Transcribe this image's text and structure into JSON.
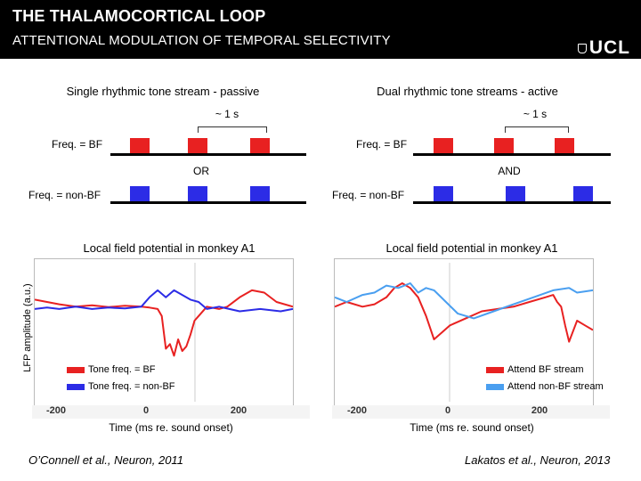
{
  "header": {
    "title": "THE THALAMOCORTICAL LOOP",
    "subtitle": "ATTENTIONAL MODULATION OF TEMPORAL SELECTIVITY",
    "logo": "UCL"
  },
  "left_panel": {
    "heading": "Single rhythmic tone stream - passive",
    "interval": "~ 1 s",
    "row1_label": "Freq. = BF",
    "connector": "OR",
    "row2_label": "Freq. = non-BF",
    "plot_title": "Local field potential in monkey A1",
    "legend": [
      "Tone freq. = BF",
      "Tone freq. = non-BF"
    ],
    "xlabel": "Time (ms re. sound onset)",
    "citation": "O’Connell et al., Neuron, 2011"
  },
  "right_panel": {
    "heading": "Dual rhythmic tone streams - active",
    "interval": "~ 1 s",
    "row1_label": "Freq. = BF",
    "connector": "AND",
    "row2_label": "Freq. = non-BF",
    "plot_title": "Local field potential in monkey A1",
    "legend": [
      "Attend BF stream",
      "Attend non-BF stream"
    ],
    "xlabel": "Time (ms re. sound onset)",
    "citation": "Lakatos et al., Neuron, 2013"
  },
  "ylabel": "LFP amplitude (a.u.)",
  "colors": {
    "bf_red": "#e82121",
    "nonbf_blue": "#2c2ce6",
    "attend_red": "#e82121",
    "attend_light_blue": "#4a9ff0"
  },
  "chart_data": [
    {
      "type": "line",
      "title": "Local field potential in monkey A1",
      "xlabel": "Time (ms re. sound onset)",
      "ylabel": "LFP amplitude (a.u.)",
      "xlim": [
        -300,
        330
      ],
      "ylim": [
        -1,
        1
      ],
      "x_ticks": [
        "-200",
        "0",
        "200"
      ],
      "series": [
        {
          "name": "Tone freq. = BF",
          "color": "#e82121",
          "x": [
            -300,
            -270,
            -240,
            -200,
            -160,
            -120,
            -80,
            -40,
            -20,
            0,
            10,
            20,
            30,
            40,
            50,
            60,
            70,
            80,
            90,
            100,
            120,
            150,
            170,
            200,
            230,
            260,
            290,
            330
          ],
          "y": [
            0.25,
            0.2,
            0.15,
            0.1,
            0.13,
            0.09,
            0.12,
            0.1,
            0.08,
            0.05,
            -0.1,
            -0.8,
            -0.7,
            -0.95,
            -0.6,
            -0.85,
            -0.75,
            -0.5,
            -0.2,
            -0.1,
            0.1,
            0.05,
            0.1,
            0.3,
            0.45,
            0.4,
            0.2,
            0.1
          ]
        },
        {
          "name": "Tone freq. = non-BF",
          "color": "#2c2ce6",
          "x": [
            -300,
            -270,
            -240,
            -200,
            -160,
            -120,
            -80,
            -40,
            -20,
            0,
            20,
            40,
            60,
            80,
            100,
            120,
            150,
            200,
            250,
            300,
            330
          ],
          "y": [
            0.05,
            0.08,
            0.05,
            0.1,
            0.05,
            0.08,
            0.06,
            0.1,
            0.3,
            0.45,
            0.3,
            0.45,
            0.35,
            0.25,
            0.2,
            0.05,
            0.1,
            0.0,
            0.05,
            0.0,
            0.05
          ]
        }
      ]
    },
    {
      "type": "line",
      "title": "Local field potential in monkey A1",
      "xlabel": "Time (ms re. sound onset)",
      "ylim": [
        -1,
        1
      ],
      "xlim": [
        -250,
        400
      ],
      "x_ticks": [
        "-200",
        "0",
        "200"
      ],
      "series": [
        {
          "name": "Attend BF stream",
          "color": "#e82121",
          "x": [
            -250,
            -220,
            -180,
            -150,
            -120,
            -100,
            -80,
            -60,
            -40,
            -20,
            0,
            20,
            40,
            80,
            120,
            160,
            200,
            240,
            280,
            300,
            310,
            320,
            330,
            340,
            360,
            380,
            400
          ],
          "y": [
            0.1,
            0.2,
            0.1,
            0.15,
            0.3,
            0.5,
            0.6,
            0.5,
            0.3,
            -0.1,
            -0.6,
            -0.45,
            -0.3,
            -0.15,
            0.0,
            0.05,
            0.1,
            0.2,
            0.3,
            0.35,
            0.2,
            0.1,
            -0.3,
            -0.65,
            -0.2,
            -0.3,
            -0.4
          ]
        },
        {
          "name": "Attend non-BF stream",
          "color": "#4a9ff0",
          "x": [
            -250,
            -220,
            -180,
            -150,
            -120,
            -90,
            -60,
            -40,
            -20,
            0,
            30,
            60,
            100,
            150,
            200,
            250,
            300,
            340,
            360,
            400
          ],
          "y": [
            0.3,
            0.2,
            0.35,
            0.4,
            0.55,
            0.5,
            0.6,
            0.4,
            0.5,
            0.45,
            0.2,
            -0.05,
            -0.15,
            0.0,
            0.15,
            0.3,
            0.45,
            0.5,
            0.4,
            0.45
          ]
        }
      ]
    }
  ]
}
